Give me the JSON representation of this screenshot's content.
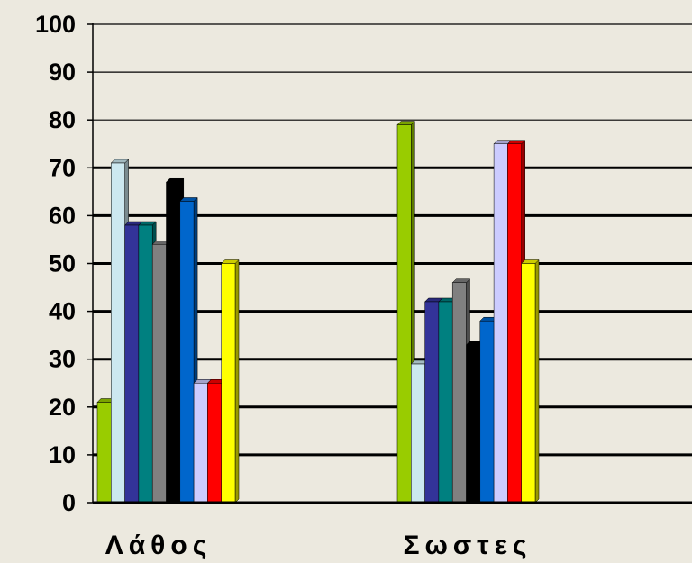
{
  "chart_data": {
    "type": "bar",
    "categories": [
      "Λάθος",
      "Σωστες"
    ],
    "ylim": [
      0,
      100
    ],
    "y_ticks": [
      0,
      10,
      20,
      30,
      40,
      50,
      60,
      70,
      80,
      90,
      100
    ],
    "grid": true,
    "legend": "none",
    "series": [
      {
        "color": "#99cc00",
        "values": [
          21,
          79
        ]
      },
      {
        "color": "#cce8f0",
        "values": [
          71,
          29
        ]
      },
      {
        "color": "#333399",
        "values": [
          58,
          42
        ]
      },
      {
        "color": "#008080",
        "values": [
          58,
          42
        ]
      },
      {
        "color": "#808080",
        "values": [
          54,
          46
        ]
      },
      {
        "color": "#000000",
        "values": [
          67,
          33
        ]
      },
      {
        "color": "#0066cc",
        "values": [
          63,
          38
        ]
      },
      {
        "color": "#ccccff",
        "values": [
          25,
          75
        ]
      },
      {
        "color": "#ff0000",
        "values": [
          25,
          75
        ]
      },
      {
        "color": "#ffff00",
        "values": [
          50,
          50
        ]
      }
    ]
  },
  "colors": {
    "background": "#ece9df",
    "grid": "#000000"
  }
}
